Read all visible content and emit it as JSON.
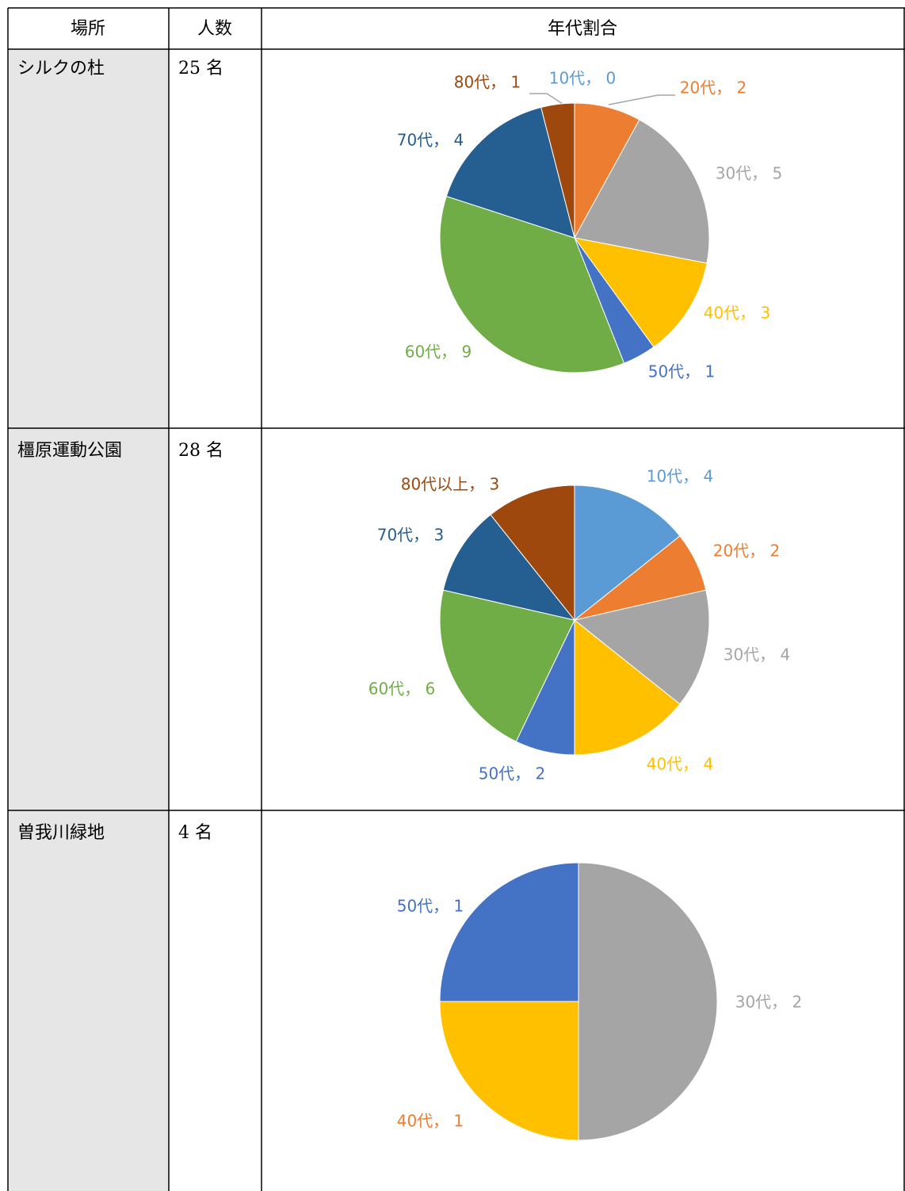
{
  "table": {
    "header": [
      "場所",
      "人数",
      "年代割合"
    ],
    "rows": [
      [
        "シルクの杜",
        "25 名"
      ],
      [
        "橿原運動公園",
        "28 名"
      ],
      [
        "曽我川緑地",
        "4 名"
      ]
    ]
  },
  "chart_data": [
    {
      "type": "pie",
      "values": [
        0,
        2,
        5,
        3,
        1,
        9,
        4,
        1
      ],
      "value_labels": [
        "10代， 0",
        "20代， 2",
        "30代， 5",
        "40代， 3",
        "50代， 1",
        "60代， 9",
        "70代， 4",
        "80代， 1"
      ],
      "colors": [
        "#5B9BD5",
        "#ED7D31",
        "#A5A5A5",
        "#FFC000",
        "#4472C4",
        "#70AD47",
        "#255E91",
        "#9E480E"
      ],
      "label_colors": [
        "#5B9BD5",
        "#ED7D31",
        "#A5A5A5",
        "#FFC000",
        "#4472C4",
        "#70AD47",
        "#255E91",
        "#9E480E"
      ]
    },
    {
      "type": "pie",
      "values": [
        4,
        2,
        4,
        4,
        2,
        6,
        3,
        3
      ],
      "value_labels": [
        "10代， 4",
        "20代， 2",
        "30代， 4",
        "40代， 4",
        "50代， 2",
        "60代， 6",
        "70代， 3",
        "80代以上， 3"
      ],
      "colors": [
        "#5B9BD5",
        "#ED7D31",
        "#A5A5A5",
        "#FFC000",
        "#4472C4",
        "#70AD47",
        "#255E91",
        "#9E480E"
      ],
      "label_colors": [
        "#5B9BD5",
        "#ED7D31",
        "#A5A5A5",
        "#FFC000",
        "#4472C4",
        "#70AD47",
        "#255E91",
        "#9E480E"
      ]
    },
    {
      "type": "pie",
      "values": [
        2,
        1,
        1
      ],
      "value_labels": [
        "30代， 2",
        "40代， 1",
        "50代， 1"
      ],
      "colors": [
        "#A5A5A5",
        "#FFC000",
        "#4472C4"
      ],
      "label_colors": [
        "#A5A5A5",
        "#ED7D31",
        "#4472C4"
      ]
    }
  ]
}
